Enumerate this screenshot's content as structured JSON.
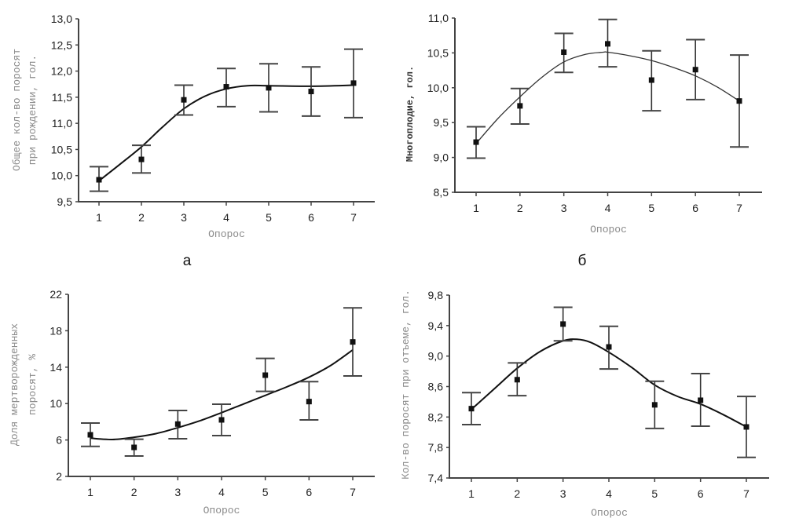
{
  "chart_data": [
    {
      "id": "a",
      "type": "scatter",
      "caption": "а",
      "title": "",
      "xlabel": "Опорос",
      "ylabel": "Общее кол-во поросят при рождении, гол.",
      "ylabel_lines": [
        "Общее кол-во поросят",
        "при рождении, гол."
      ],
      "x": [
        1,
        2,
        3,
        4,
        5,
        6,
        7
      ],
      "x_ticks": [
        "1",
        "2",
        "3",
        "4",
        "5",
        "6",
        "7"
      ],
      "y_ticks": [
        "9,5",
        "10,0",
        "10,5",
        "11,0",
        "11,5",
        "12,0",
        "12,5",
        "13,0"
      ],
      "y_tick_values": [
        9.5,
        10.0,
        10.5,
        11.0,
        11.5,
        12.0,
        12.5,
        13.0
      ],
      "ylim": [
        9.5,
        13.0
      ],
      "xlim": [
        0.5,
        7.8
      ],
      "grid": false,
      "series": [
        {
          "name": "mean",
          "values": [
            9.92,
            10.31,
            11.45,
            11.7,
            11.68,
            11.61,
            11.77
          ],
          "err_high": [
            10.17,
            10.58,
            11.73,
            12.05,
            12.14,
            12.08,
            12.42
          ],
          "err_low": [
            9.7,
            10.05,
            11.16,
            11.32,
            11.22,
            11.14,
            11.11
          ]
        },
        {
          "name": "fit",
          "type": "line",
          "x": [
            1,
            1.5,
            2,
            2.5,
            3,
            3.5,
            4,
            4.5,
            5,
            6,
            7
          ],
          "values": [
            9.9,
            10.22,
            10.55,
            10.93,
            11.28,
            11.52,
            11.66,
            11.72,
            11.72,
            11.71,
            11.73
          ]
        }
      ]
    },
    {
      "id": "b",
      "type": "scatter",
      "caption": "б",
      "title": "",
      "xlabel": "Опорос",
      "ylabel": "Многоплодие, гол.",
      "ylabel_lines": [
        "Многоплодие, гол."
      ],
      "x": [
        1,
        2,
        3,
        4,
        5,
        6,
        7
      ],
      "x_ticks": [
        "1",
        "2",
        "3",
        "4",
        "5",
        "6",
        "7"
      ],
      "y_ticks": [
        "8,5",
        "9,0",
        "9,5",
        "10,0",
        "10,5",
        "11,0"
      ],
      "y_tick_values": [
        8.5,
        9.0,
        9.5,
        10.0,
        10.5,
        11.0
      ],
      "ylim": [
        8.5,
        11.0
      ],
      "xlim": [
        0.5,
        7.9
      ],
      "grid": false,
      "series": [
        {
          "name": "mean",
          "values": [
            9.22,
            9.74,
            10.51,
            10.63,
            10.11,
            10.26,
            9.81
          ],
          "err_high": [
            9.44,
            9.99,
            10.78,
            10.98,
            10.53,
            10.69,
            10.47
          ],
          "err_low": [
            8.99,
            9.48,
            10.22,
            10.3,
            9.67,
            9.83,
            9.15
          ]
        },
        {
          "name": "fit",
          "type": "line",
          "x": [
            1,
            1.5,
            2,
            2.5,
            3,
            3.5,
            3.9,
            4,
            4.5,
            5,
            5.5,
            6,
            6.5,
            7
          ],
          "values": [
            9.2,
            9.56,
            9.87,
            10.15,
            10.37,
            10.48,
            10.51,
            10.51,
            10.46,
            10.39,
            10.29,
            10.17,
            10.01,
            9.81
          ]
        }
      ]
    },
    {
      "id": "c",
      "type": "scatter",
      "caption": "",
      "title": "",
      "xlabel": "Опорос",
      "ylabel": "Доля мертворожденных поросят, %",
      "ylabel_lines": [
        "Доля мертворожденных",
        "поросят, %"
      ],
      "x": [
        1,
        2,
        3,
        4,
        5,
        6,
        7
      ],
      "x_ticks": [
        "1",
        "2",
        "3",
        "4",
        "5",
        "6",
        "7"
      ],
      "y_ticks": [
        "2",
        "6",
        "10",
        "14",
        "18",
        "22"
      ],
      "y_tick_values": [
        2,
        6,
        10,
        14,
        18,
        22
      ],
      "ylim": [
        2,
        22
      ],
      "xlim": [
        0.5,
        7.8
      ],
      "grid": false,
      "series": [
        {
          "name": "mean",
          "values": [
            6.57,
            5.19,
            7.75,
            8.21,
            13.12,
            10.22,
            16.77
          ],
          "err_high": [
            7.86,
            6.08,
            9.24,
            9.93,
            14.96,
            12.41,
            20.51
          ],
          "err_low": [
            5.3,
            4.24,
            6.14,
            6.48,
            11.34,
            8.21,
            13.03
          ]
        },
        {
          "name": "fit",
          "type": "line",
          "x": [
            1,
            1.5,
            2,
            2.5,
            3,
            3.5,
            4,
            4.5,
            5,
            5.5,
            6,
            6.5,
            7
          ],
          "values": [
            6.2,
            6.05,
            6.3,
            6.7,
            7.35,
            8.1,
            9.0,
            9.95,
            10.9,
            11.85,
            12.9,
            14.2,
            15.9
          ]
        }
      ]
    },
    {
      "id": "d",
      "type": "scatter",
      "caption": "",
      "title": "",
      "xlabel": "Опорос",
      "ylabel": "Кол-во поросят при отъеме, гол.",
      "ylabel_lines": [
        "Кол-во поросят при отъеме, гол."
      ],
      "x": [
        1,
        2,
        3,
        4,
        5,
        6,
        7
      ],
      "x_ticks": [
        "1",
        "2",
        "3",
        "4",
        "5",
        "6",
        "7"
      ],
      "y_ticks": [
        "7,4",
        "7,8",
        "8,2",
        "8,6",
        "9,0",
        "9,4",
        "9,8"
      ],
      "y_tick_values": [
        7.4,
        7.8,
        8.2,
        8.6,
        9.0,
        9.4,
        9.8
      ],
      "ylim": [
        7.4,
        9.8
      ],
      "xlim": [
        0.5,
        7.5
      ],
      "grid": false,
      "series": [
        {
          "name": "mean",
          "values": [
            8.31,
            8.69,
            9.42,
            9.12,
            8.36,
            8.42,
            8.07
          ],
          "err_high": [
            8.52,
            8.91,
            9.64,
            9.39,
            8.67,
            8.77,
            8.47
          ],
          "err_low": [
            8.1,
            8.48,
            9.2,
            8.83,
            8.05,
            8.08,
            7.67
          ]
        },
        {
          "name": "fit",
          "type": "line",
          "x": [
            1,
            1.5,
            2,
            2.5,
            3,
            3.3,
            3.6,
            4,
            4.5,
            5,
            5.5,
            6,
            6.5,
            7
          ],
          "values": [
            8.3,
            8.57,
            8.84,
            9.06,
            9.2,
            9.22,
            9.18,
            9.05,
            8.85,
            8.62,
            8.47,
            8.37,
            8.23,
            8.07
          ]
        }
      ]
    }
  ]
}
